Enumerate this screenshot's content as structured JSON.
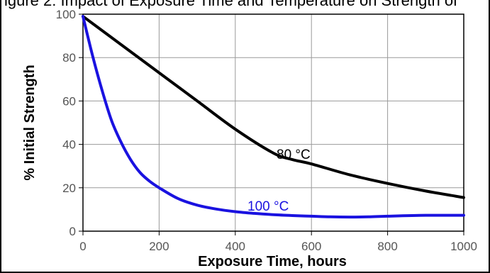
{
  "cut_text": "igure 2: Impact of Exposure Time and Temperature on Strength of",
  "chart_data": {
    "type": "line",
    "title": "",
    "xlabel": "Exposure Time, hours",
    "ylabel": "% Initial Strength",
    "xlim": [
      0,
      1000
    ],
    "ylim": [
      0,
      100
    ],
    "xticks": [
      0,
      200,
      400,
      600,
      800,
      1000
    ],
    "yticks": [
      0,
      20,
      40,
      60,
      80,
      100
    ],
    "grid": true,
    "series": [
      {
        "name": "80 °C",
        "color": "#000000",
        "x": [
          0,
          100,
          200,
          300,
          400,
          500,
          550,
          600,
          700,
          800,
          900,
          1000
        ],
        "y": [
          99,
          86,
          73,
          60,
          47,
          36,
          33,
          31,
          26,
          22,
          18.5,
          15.5
        ]
      },
      {
        "name": "100 °C",
        "color": "#1a12e0",
        "x": [
          0,
          25,
          50,
          75,
          100,
          125,
          150,
          175,
          200,
          250,
          300,
          350,
          400,
          450,
          500,
          550,
          600,
          650,
          700,
          750,
          800,
          900,
          1000
        ],
        "y": [
          99,
          81,
          65,
          51,
          41,
          33,
          27,
          23,
          20,
          15,
          12,
          10.2,
          9,
          8.2,
          7.6,
          7.2,
          6.9,
          6.6,
          6.5,
          6.6,
          6.9,
          7.3,
          7.3
        ]
      }
    ]
  }
}
